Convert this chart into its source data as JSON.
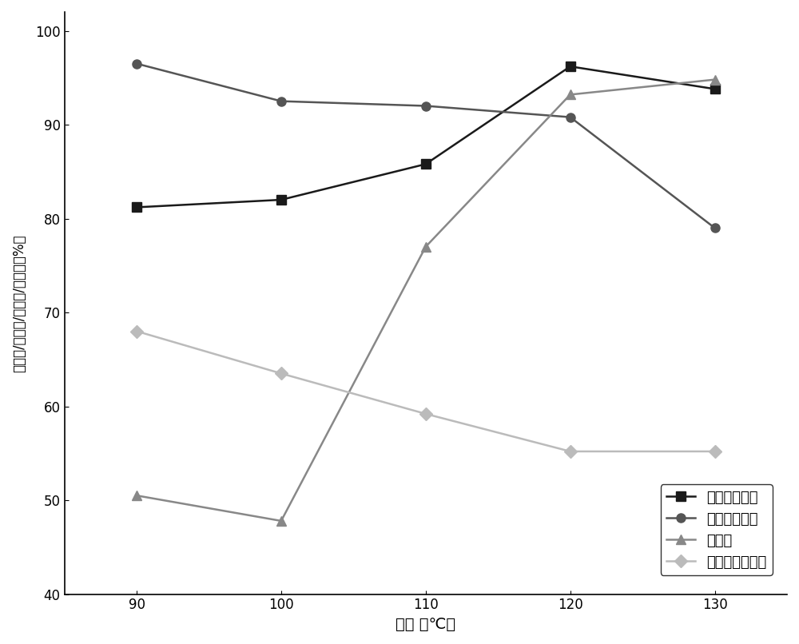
{
  "x": [
    90,
    100,
    110,
    120,
    130
  ],
  "series_order": [
    "木质素去除率",
    "纤维素回收率",
    "糖化率",
    "纤维素的结晶度"
  ],
  "series": {
    "木质素去除率": {
      "y": [
        81.2,
        82.0,
        85.8,
        96.2,
        93.8
      ],
      "color": "#1a1a1a",
      "marker": "s",
      "markersize": 8,
      "linewidth": 1.8,
      "linestyle": "-"
    },
    "纤维素回收率": {
      "y": [
        96.5,
        92.5,
        92.0,
        90.8,
        79.0
      ],
      "color": "#555555",
      "marker": "o",
      "markersize": 8,
      "linewidth": 1.8,
      "linestyle": "-"
    },
    "糖化率": {
      "y": [
        50.5,
        47.8,
        77.0,
        93.2,
        94.8
      ],
      "color": "#888888",
      "marker": "^",
      "markersize": 8,
      "linewidth": 1.8,
      "linestyle": "-"
    },
    "纤维素的结晶度": {
      "y": [
        68.0,
        63.5,
        59.2,
        55.2,
        55.2
      ],
      "color": "#bbbbbb",
      "marker": "D",
      "markersize": 8,
      "linewidth": 1.8,
      "linestyle": "-"
    }
  },
  "xlabel": "温度 （℃）",
  "ylabel": "去除率/回收率/糖化率/结晶度（%）",
  "ylim": [
    40,
    102
  ],
  "yticks": [
    40,
    50,
    60,
    70,
    80,
    90,
    100
  ],
  "xticks": [
    90,
    100,
    110,
    120,
    130
  ],
  "figsize": [
    10.0,
    8.06
  ],
  "dpi": 100,
  "background_color": "#ffffff"
}
